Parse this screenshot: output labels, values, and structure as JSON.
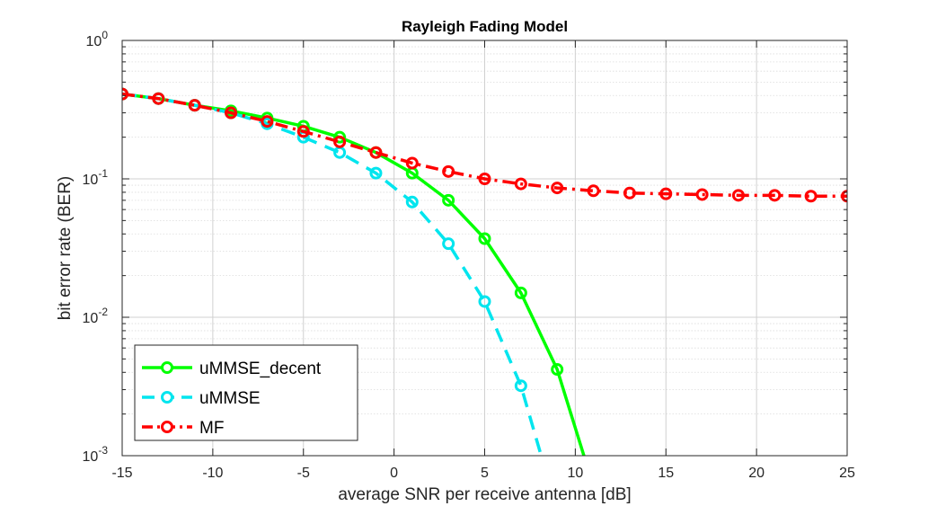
{
  "chart_data": {
    "type": "line",
    "title": "Rayleigh Fading Model",
    "xlabel": "average SNR per receive antenna [dB]",
    "ylabel": "bit error rate (BER)",
    "xlim": [
      -15,
      25
    ],
    "ylim": [
      0.001,
      1
    ],
    "yscale": "log",
    "grid": true,
    "legend_position": "bottom-left",
    "xticks": [
      "-15",
      "-10",
      "-5",
      "0",
      "5",
      "10",
      "15",
      "20",
      "25"
    ],
    "yticks": [
      {
        "base": "10",
        "exp": "0"
      },
      {
        "base": "10",
        "exp": "-1"
      },
      {
        "base": "10",
        "exp": "-2"
      },
      {
        "base": "10",
        "exp": "-3"
      }
    ],
    "series": [
      {
        "name": "uMMSE_decent",
        "color": "#00ff00",
        "line": "solid",
        "marker": "circle",
        "x": [
          -15,
          -13,
          -11,
          -9,
          -7,
          -5,
          -3,
          -1,
          1,
          3,
          5,
          7,
          9,
          11
        ],
        "y": [
          0.41,
          0.38,
          0.34,
          0.31,
          0.275,
          0.24,
          0.2,
          0.155,
          0.11,
          0.07,
          0.037,
          0.015,
          0.0042,
          0.0006
        ]
      },
      {
        "name": "uMMSE",
        "color": "#00e5ee",
        "line": "dashed",
        "marker": "circle",
        "x": [
          -15,
          -13,
          -11,
          -9,
          -7,
          -5,
          -3,
          -1,
          1,
          3,
          5,
          7,
          9
        ],
        "y": [
          0.41,
          0.38,
          0.34,
          0.3,
          0.25,
          0.2,
          0.155,
          0.11,
          0.068,
          0.034,
          0.013,
          0.0032,
          0.0004
        ]
      },
      {
        "name": "MF",
        "color": "#ff0000",
        "line": "dashdot",
        "marker": "circle",
        "x": [
          -15,
          -13,
          -11,
          -9,
          -7,
          -5,
          -3,
          -1,
          1,
          3,
          5,
          7,
          9,
          11,
          13,
          15,
          17,
          19,
          21,
          23,
          25
        ],
        "y": [
          0.41,
          0.38,
          0.34,
          0.3,
          0.26,
          0.22,
          0.185,
          0.155,
          0.13,
          0.113,
          0.1,
          0.092,
          0.086,
          0.082,
          0.079,
          0.078,
          0.077,
          0.076,
          0.076,
          0.075,
          0.075
        ]
      }
    ]
  }
}
